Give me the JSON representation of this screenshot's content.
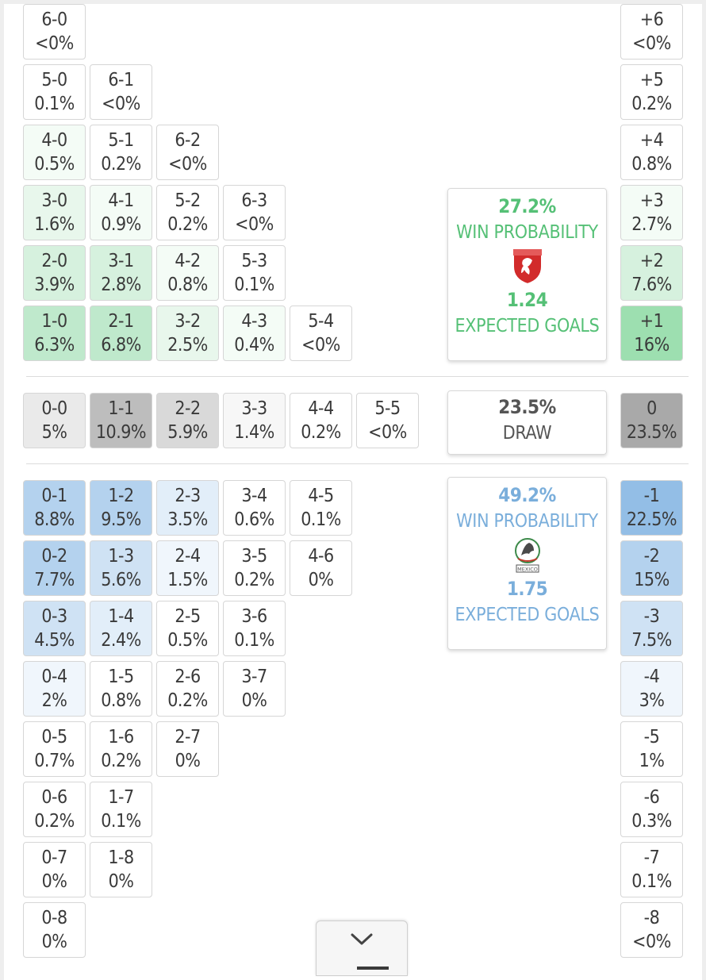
{
  "home_win": {
    "probability": "27.2%",
    "label": "WIN PROBABILITY",
    "expected_goals": "1.24",
    "expected_label": "EXPECTED GOALS",
    "color": "#55c076",
    "crest_icon": "czech-crest-icon"
  },
  "draw": {
    "probability": "23.5%",
    "label": "DRAW",
    "color": "#555555"
  },
  "away_win": {
    "probability": "49.2%",
    "label": "WIN PROBABILITY",
    "expected_goals": "1.75",
    "expected_label": "EXPECTED GOALS",
    "color": "#7aaedb",
    "crest_icon": "mexico-crest-icon",
    "crest_text": "MEXICO"
  },
  "score_grid": [
    {
      "score": "6-0",
      "prob": "<0%",
      "row": 0,
      "col": 0,
      "tone": "home",
      "level": 0
    },
    {
      "score": "5-0",
      "prob": "0.1%",
      "row": 1,
      "col": 0,
      "tone": "home",
      "level": 0
    },
    {
      "score": "6-1",
      "prob": "<0%",
      "row": 1,
      "col": 1,
      "tone": "home",
      "level": 0
    },
    {
      "score": "4-0",
      "prob": "0.5%",
      "row": 2,
      "col": 0,
      "tone": "home",
      "level": 1
    },
    {
      "score": "5-1",
      "prob": "0.2%",
      "row": 2,
      "col": 1,
      "tone": "home",
      "level": 0
    },
    {
      "score": "6-2",
      "prob": "<0%",
      "row": 2,
      "col": 2,
      "tone": "home",
      "level": 0
    },
    {
      "score": "3-0",
      "prob": "1.6%",
      "row": 3,
      "col": 0,
      "tone": "home",
      "level": 2
    },
    {
      "score": "4-1",
      "prob": "0.9%",
      "row": 3,
      "col": 1,
      "tone": "home",
      "level": 1
    },
    {
      "score": "5-2",
      "prob": "0.2%",
      "row": 3,
      "col": 2,
      "tone": "home",
      "level": 0
    },
    {
      "score": "6-3",
      "prob": "<0%",
      "row": 3,
      "col": 3,
      "tone": "home",
      "level": 0
    },
    {
      "score": "2-0",
      "prob": "3.9%",
      "row": 4,
      "col": 0,
      "tone": "home",
      "level": 3
    },
    {
      "score": "3-1",
      "prob": "2.8%",
      "row": 4,
      "col": 1,
      "tone": "home",
      "level": 3
    },
    {
      "score": "4-2",
      "prob": "0.8%",
      "row": 4,
      "col": 2,
      "tone": "home",
      "level": 1
    },
    {
      "score": "5-3",
      "prob": "0.1%",
      "row": 4,
      "col": 3,
      "tone": "home",
      "level": 0
    },
    {
      "score": "1-0",
      "prob": "6.3%",
      "row": 5,
      "col": 0,
      "tone": "home",
      "level": 4
    },
    {
      "score": "2-1",
      "prob": "6.8%",
      "row": 5,
      "col": 1,
      "tone": "home",
      "level": 4
    },
    {
      "score": "3-2",
      "prob": "2.5%",
      "row": 5,
      "col": 2,
      "tone": "home",
      "level": 2
    },
    {
      "score": "4-3",
      "prob": "0.4%",
      "row": 5,
      "col": 3,
      "tone": "home",
      "level": 1
    },
    {
      "score": "5-4",
      "prob": "<0%",
      "row": 5,
      "col": 4,
      "tone": "home",
      "level": 0
    },
    {
      "score": "0-0",
      "prob": "5%",
      "row": 6,
      "col": 0,
      "tone": "draw",
      "level": 2
    },
    {
      "score": "1-1",
      "prob": "10.9%",
      "row": 6,
      "col": 1,
      "tone": "draw",
      "level": 4
    },
    {
      "score": "2-2",
      "prob": "5.9%",
      "row": 6,
      "col": 2,
      "tone": "draw",
      "level": 3
    },
    {
      "score": "3-3",
      "prob": "1.4%",
      "row": 6,
      "col": 3,
      "tone": "draw",
      "level": 1
    },
    {
      "score": "4-4",
      "prob": "0.2%",
      "row": 6,
      "col": 4,
      "tone": "draw",
      "level": 0
    },
    {
      "score": "5-5",
      "prob": "<0%",
      "row": 6,
      "col": 5,
      "tone": "draw",
      "level": 0
    },
    {
      "score": "0-1",
      "prob": "8.8%",
      "row": 7,
      "col": 0,
      "tone": "away",
      "level": 4
    },
    {
      "score": "1-2",
      "prob": "9.5%",
      "row": 7,
      "col": 1,
      "tone": "away",
      "level": 4
    },
    {
      "score": "2-3",
      "prob": "3.5%",
      "row": 7,
      "col": 2,
      "tone": "away",
      "level": 2
    },
    {
      "score": "3-4",
      "prob": "0.6%",
      "row": 7,
      "col": 3,
      "tone": "away",
      "level": 0
    },
    {
      "score": "4-5",
      "prob": "0.1%",
      "row": 7,
      "col": 4,
      "tone": "away",
      "level": 0
    },
    {
      "score": "0-2",
      "prob": "7.7%",
      "row": 8,
      "col": 0,
      "tone": "away",
      "level": 4
    },
    {
      "score": "1-3",
      "prob": "5.6%",
      "row": 8,
      "col": 1,
      "tone": "away",
      "level": 3
    },
    {
      "score": "2-4",
      "prob": "1.5%",
      "row": 8,
      "col": 2,
      "tone": "away",
      "level": 1
    },
    {
      "score": "3-5",
      "prob": "0.2%",
      "row": 8,
      "col": 3,
      "tone": "away",
      "level": 0
    },
    {
      "score": "4-6",
      "prob": "0%",
      "row": 8,
      "col": 4,
      "tone": "away",
      "level": 0
    },
    {
      "score": "0-3",
      "prob": "4.5%",
      "row": 9,
      "col": 0,
      "tone": "away",
      "level": 3
    },
    {
      "score": "1-4",
      "prob": "2.4%",
      "row": 9,
      "col": 1,
      "tone": "away",
      "level": 2
    },
    {
      "score": "2-5",
      "prob": "0.5%",
      "row": 9,
      "col": 2,
      "tone": "away",
      "level": 0
    },
    {
      "score": "3-6",
      "prob": "0.1%",
      "row": 9,
      "col": 3,
      "tone": "away",
      "level": 0
    },
    {
      "score": "0-4",
      "prob": "2%",
      "row": 10,
      "col": 0,
      "tone": "away",
      "level": 1
    },
    {
      "score": "1-5",
      "prob": "0.8%",
      "row": 10,
      "col": 1,
      "tone": "away",
      "level": 0
    },
    {
      "score": "2-6",
      "prob": "0.2%",
      "row": 10,
      "col": 2,
      "tone": "away",
      "level": 0
    },
    {
      "score": "3-7",
      "prob": "0%",
      "row": 10,
      "col": 3,
      "tone": "away",
      "level": 0
    },
    {
      "score": "0-5",
      "prob": "0.7%",
      "row": 11,
      "col": 0,
      "tone": "away",
      "level": 0
    },
    {
      "score": "1-6",
      "prob": "0.2%",
      "row": 11,
      "col": 1,
      "tone": "away",
      "level": 0
    },
    {
      "score": "2-7",
      "prob": "0%",
      "row": 11,
      "col": 2,
      "tone": "away",
      "level": 0
    },
    {
      "score": "0-6",
      "prob": "0.2%",
      "row": 12,
      "col": 0,
      "tone": "away",
      "level": 0
    },
    {
      "score": "1-7",
      "prob": "0.1%",
      "row": 12,
      "col": 1,
      "tone": "away",
      "level": 0
    },
    {
      "score": "0-7",
      "prob": "0%",
      "row": 13,
      "col": 0,
      "tone": "away",
      "level": 0
    },
    {
      "score": "1-8",
      "prob": "0%",
      "row": 13,
      "col": 1,
      "tone": "away",
      "level": 0
    },
    {
      "score": "0-8",
      "prob": "0%",
      "row": 14,
      "col": 0,
      "tone": "away",
      "level": 0
    }
  ],
  "goal_difference": [
    {
      "diff": "+6",
      "prob": "<0%",
      "row": 0,
      "tone": "home",
      "level": 0
    },
    {
      "diff": "+5",
      "prob": "0.2%",
      "row": 1,
      "tone": "home",
      "level": 0
    },
    {
      "diff": "+4",
      "prob": "0.8%",
      "row": 2,
      "tone": "home",
      "level": 0
    },
    {
      "diff": "+3",
      "prob": "2.7%",
      "row": 3,
      "tone": "home",
      "level": 1
    },
    {
      "diff": "+2",
      "prob": "7.6%",
      "row": 4,
      "tone": "home",
      "level": 3
    },
    {
      "diff": "+1",
      "prob": "16%",
      "row": 5,
      "tone": "home",
      "level": 5
    },
    {
      "diff": "0",
      "prob": "23.5%",
      "row": 6,
      "tone": "draw",
      "level": 5
    },
    {
      "diff": "-1",
      "prob": "22.5%",
      "row": 7,
      "tone": "away",
      "level": 5
    },
    {
      "diff": "-2",
      "prob": "15%",
      "row": 8,
      "tone": "away",
      "level": 4
    },
    {
      "diff": "-3",
      "prob": "7.5%",
      "row": 9,
      "tone": "away",
      "level": 3
    },
    {
      "diff": "-4",
      "prob": "3%",
      "row": 10,
      "tone": "away",
      "level": 1
    },
    {
      "diff": "-5",
      "prob": "1%",
      "row": 11,
      "tone": "away",
      "level": 0
    },
    {
      "diff": "-6",
      "prob": "0.3%",
      "row": 12,
      "tone": "away",
      "level": 0
    },
    {
      "diff": "-7",
      "prob": "0.1%",
      "row": 13,
      "tone": "away",
      "level": 0
    },
    {
      "diff": "-8",
      "prob": "<0%",
      "row": 14,
      "tone": "away",
      "level": 0
    }
  ],
  "palette": {
    "home": [
      "#ffffff",
      "#f4fcf6",
      "#e8f7ec",
      "#d6f1de",
      "#bfe9cc",
      "#9ddfb0"
    ],
    "away": [
      "#ffffff",
      "#f0f6fc",
      "#e2eef9",
      "#cfe2f4",
      "#b4d2ee",
      "#93bee6"
    ],
    "draw": [
      "#ffffff",
      "#f7f7f7",
      "#eaeaea",
      "#d9d9d9",
      "#bdbdbd",
      "#a9a9a9"
    ]
  },
  "scroll_icon": "chevron-down-icon"
}
